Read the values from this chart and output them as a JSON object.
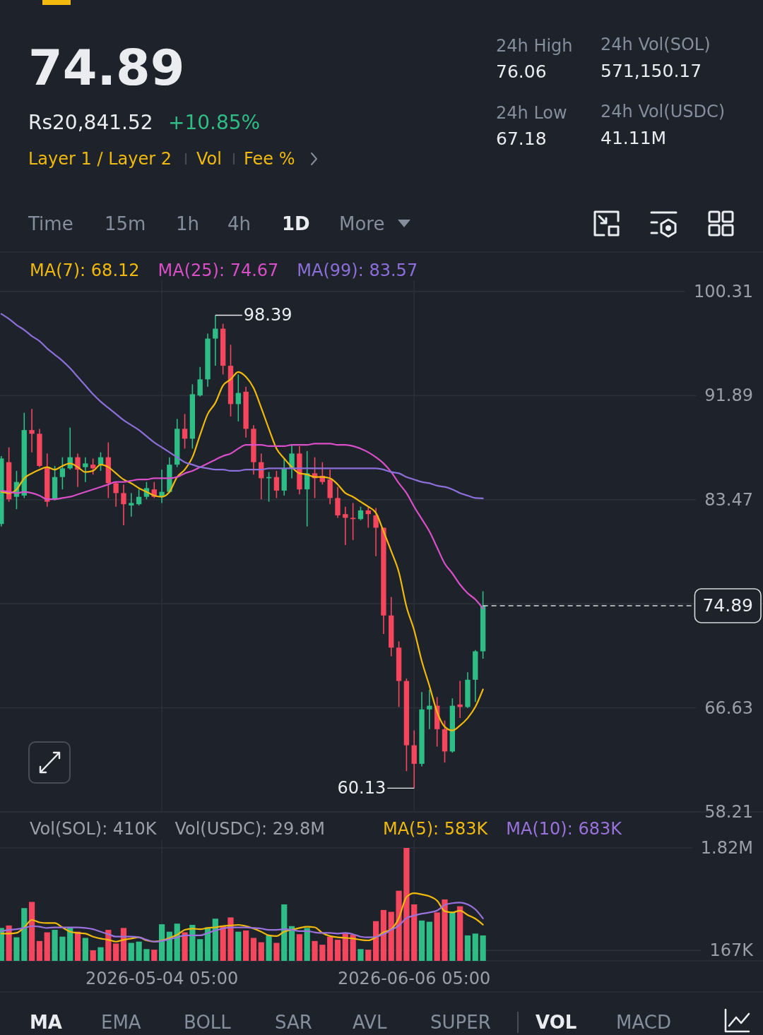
{
  "chart_data": [
    {
      "type": "other",
      "title": "74.89",
      "annotations": [
        "Rs20,841.52",
        "+10.85%",
        "Layer 1 / Layer 2",
        "Vol",
        "Fee %",
        "24h High",
        "76.06",
        "24h Low",
        "67.18",
        "24h Vol(SOL)",
        "571,150.17",
        "24h Vol(USDC)",
        "41.11M",
        "Time",
        "15m",
        "1h",
        "4h",
        "1D",
        "More"
      ]
    },
    {
      "type": "candlestick",
      "x": [
        "2026-04-13T05:00",
        "2026-04-14T05:00",
        "2026-04-15T05:00",
        "2026-04-16T05:00",
        "2026-04-17T05:00",
        "2026-04-18T05:00",
        "2026-04-19T05:00",
        "2026-04-20T05:00",
        "2026-04-21T05:00",
        "2026-04-22T05:00",
        "2026-04-23T05:00",
        "2026-04-24T05:00",
        "2026-04-25T05:00",
        "2026-04-26T05:00",
        "2026-04-27T05:00",
        "2026-04-28T05:00",
        "2026-04-29T05:00",
        "2026-04-30T05:00",
        "2026-05-01T05:00",
        "2026-05-02T05:00",
        "2026-05-03T05:00",
        "2026-05-04T05:00",
        "2026-05-05T05:00",
        "2026-05-06T05:00",
        "2026-05-07T05:00",
        "2026-05-08T05:00",
        "2026-05-09T05:00",
        "2026-05-10T05:00",
        "2026-05-11T05:00",
        "2026-05-12T05:00",
        "2026-05-13T05:00",
        "2026-05-14T05:00",
        "2026-05-15T05:00",
        "2026-05-16T05:00",
        "2026-05-17T05:00",
        "2026-05-18T05:00",
        "2026-05-19T05:00",
        "2026-05-20T05:00",
        "2026-05-21T05:00",
        "2026-05-22T05:00",
        "2026-05-23T05:00",
        "2026-05-24T05:00",
        "2026-05-25T05:00",
        "2026-05-26T05:00",
        "2026-05-27T05:00",
        "2026-05-28T05:00",
        "2026-05-29T05:00",
        "2026-05-30T05:00",
        "2026-05-31T05:00",
        "2026-06-01T05:00",
        "2026-06-02T05:00",
        "2026-06-03T05:00",
        "2026-06-04T05:00",
        "2026-06-05T05:00",
        "2026-06-06T05:00",
        "2026-06-07T05:00",
        "2026-06-08T05:00",
        "2026-06-09T05:00",
        "2026-06-10T05:00",
        "2026-06-11T05:00",
        "2026-06-12T05:00",
        "2026-06-13T05:00",
        "2026-06-14T05:00",
        "2026-06-15T05:00"
      ],
      "ohlc": [
        [
          81.5,
          87.0,
          81.3,
          86.8
        ],
        [
          86.5,
          87.7,
          83.3,
          83.5
        ],
        [
          83.7,
          85.8,
          82.7,
          84.9
        ],
        [
          83.8,
          90.5,
          83.6,
          89.1
        ],
        [
          89.1,
          90.8,
          87.3,
          88.8
        ],
        [
          88.8,
          89.2,
          86.1,
          86.2
        ],
        [
          86.1,
          87.2,
          82.9,
          83.3
        ],
        [
          83.5,
          86.2,
          83.4,
          85.3
        ],
        [
          85.3,
          86.9,
          84.3,
          86.0
        ],
        [
          86.0,
          89.3,
          85.9,
          86.9
        ],
        [
          86.9,
          87.2,
          84.5,
          85.9
        ],
        [
          86.1,
          86.9,
          84.9,
          86.4
        ],
        [
          86.3,
          86.8,
          85.5,
          86.0
        ],
        [
          86.3,
          87.3,
          85.8,
          86.9
        ],
        [
          86.9,
          88.1,
          83.6,
          84.8
        ],
        [
          84.8,
          84.9,
          82.9,
          84.0
        ],
        [
          84.0,
          84.7,
          81.4,
          83.1
        ],
        [
          83.0,
          84.0,
          82.1,
          83.2
        ],
        [
          83.1,
          84.3,
          83.0,
          83.7
        ],
        [
          83.7,
          84.9,
          83.5,
          84.4
        ],
        [
          84.3,
          84.9,
          83.6,
          83.7
        ],
        [
          83.7,
          85.9,
          83.2,
          84.1
        ],
        [
          84.1,
          86.9,
          84.0,
          86.3
        ],
        [
          86.3,
          90.0,
          86.1,
          89.2
        ],
        [
          89.2,
          90.4,
          87.6,
          88.4
        ],
        [
          88.4,
          92.8,
          87.6,
          92.0
        ],
        [
          91.9,
          94.2,
          91.8,
          93.2
        ],
        [
          93.2,
          96.9,
          92.6,
          96.5
        ],
        [
          96.5,
          98.39,
          94.3,
          97.3
        ],
        [
          97.3,
          97.7,
          93.6,
          94.3
        ],
        [
          94.3,
          96.0,
          90.2,
          91.2
        ],
        [
          91.2,
          93.6,
          89.8,
          92.1
        ],
        [
          92.2,
          92.6,
          88.5,
          89.2
        ],
        [
          89.2,
          89.5,
          85.5,
          86.5
        ],
        [
          86.5,
          87.2,
          83.5,
          85.2
        ],
        [
          85.2,
          85.7,
          83.3,
          85.3
        ],
        [
          85.3,
          85.8,
          83.6,
          84.2
        ],
        [
          84.2,
          86.8,
          83.8,
          86.0
        ],
        [
          86.0,
          87.9,
          85.2,
          87.2
        ],
        [
          87.2,
          87.8,
          83.9,
          84.3
        ],
        [
          84.3,
          87.4,
          81.3,
          85.6
        ],
        [
          85.6,
          86.9,
          83.6,
          85.2
        ],
        [
          85.4,
          86.5,
          84.7,
          84.9
        ],
        [
          85.1,
          85.9,
          83.1,
          83.6
        ],
        [
          83.6,
          84.5,
          82.0,
          82.2
        ],
        [
          82.3,
          82.9,
          79.8,
          82.0
        ],
        [
          82.0,
          83.2,
          80.2,
          81.9
        ],
        [
          81.9,
          82.9,
          81.8,
          82.6
        ],
        [
          82.6,
          82.9,
          81.2,
          82.3
        ],
        [
          82.2,
          82.8,
          78.9,
          81.2
        ],
        [
          81.2,
          81.2,
          72.6,
          74.1
        ],
        [
          74.1,
          75.6,
          70.8,
          71.5
        ],
        [
          71.5,
          72.0,
          66.7,
          68.8
        ],
        [
          68.8,
          69.0,
          61.5,
          63.6
        ],
        [
          63.6,
          64.8,
          60.13,
          62.1
        ],
        [
          62.1,
          67.9,
          61.9,
          66.5
        ],
        [
          66.5,
          68.1,
          64.9,
          66.8
        ],
        [
          66.8,
          67.5,
          63.5,
          64.9
        ],
        [
          64.9,
          65.6,
          62.2,
          63.1
        ],
        [
          63.1,
          67.4,
          63.0,
          66.8
        ],
        [
          66.9,
          68.8,
          65.8,
          66.7
        ],
        [
          66.7,
          69.5,
          66.6,
          68.9
        ],
        [
          68.9,
          71.3,
          67.1,
          71.2
        ],
        [
          71.2,
          76.06,
          70.6,
          74.89
        ]
      ],
      "colors": [
        "#2ebd85",
        "#f6465d",
        "#2ebd85",
        "#2ebd85",
        "#f6465d",
        "#f6465d",
        "#f6465d",
        "#2ebd85",
        "#2ebd85",
        "#2ebd85",
        "#f6465d",
        "#2ebd85",
        "#f6465d",
        "#2ebd85",
        "#f6465d",
        "#f6465d",
        "#f6465d",
        "#2ebd85",
        "#2ebd85",
        "#2ebd85",
        "#f6465d",
        "#2ebd85",
        "#2ebd85",
        "#2ebd85",
        "#f6465d",
        "#2ebd85",
        "#2ebd85",
        "#2ebd85",
        "#2ebd85",
        "#f6465d",
        "#f6465d",
        "#2ebd85",
        "#f6465d",
        "#f6465d",
        "#f6465d",
        "#2ebd85",
        "#f6465d",
        "#2ebd85",
        "#2ebd85",
        "#f6465d",
        "#2ebd85",
        "#f6465d",
        "#f6465d",
        "#f6465d",
        "#f6465d",
        "#f6465d",
        "#f6465d",
        "#2ebd85",
        "#f6465d",
        "#f6465d",
        "#f6465d",
        "#f6465d",
        "#f6465d",
        "#f6465d",
        "#f6465d",
        "#2ebd85",
        "#2ebd85",
        "#f6465d",
        "#f6465d",
        "#2ebd85",
        "#f6465d",
        "#2ebd85",
        "#2ebd85",
        "#2ebd85"
      ],
      "series": [
        {
          "name": "MA(7): 68.12",
          "type": "line",
          "color": "#f0b90b",
          "values": [
            84.1,
            84.0,
            84.3,
            85.2,
            85.6,
            85.9,
            86.1,
            85.9,
            86.2,
            86.4,
            86.1,
            85.7,
            85.8,
            86.3,
            86.1,
            85.6,
            85.1,
            84.8,
            84.4,
            84.1,
            83.8,
            83.7,
            84.1,
            85.3,
            85.9,
            86.9,
            88.7,
            90.4,
            91.3,
            92.7,
            93.2,
            93.8,
            93.4,
            92.5,
            90.9,
            89.2,
            87.6,
            86.8,
            86.1,
            85.6,
            85.5,
            85.3,
            85.3,
            85.2,
            84.7,
            84.0,
            83.7,
            83.3,
            82.9,
            82.4,
            80.9,
            79.3,
            77.6,
            74.8,
            72.9,
            70.4,
            68.4,
            66.3,
            65.1,
            64.8,
            65.2,
            65.8,
            66.7,
            68.12
          ]
        },
        {
          "name": "MA(25): 74.67",
          "type": "line",
          "color": "#d94fc8",
          "values": [
            84.2,
            84.1,
            84.0,
            84.1,
            84.0,
            83.8,
            83.5,
            83.5,
            83.6,
            83.7,
            83.9,
            84.1,
            84.3,
            84.5,
            84.7,
            84.9,
            84.9,
            85.0,
            85.1,
            85.1,
            85.2,
            85.2,
            85.2,
            85.3,
            85.6,
            85.8,
            86.1,
            86.4,
            86.7,
            87.0,
            87.2,
            87.6,
            87.9,
            87.9,
            87.9,
            87.8,
            87.8,
            87.8,
            87.9,
            87.9,
            87.9,
            88.0,
            88.0,
            88.0,
            87.9,
            87.9,
            87.8,
            87.6,
            87.3,
            86.9,
            86.4,
            85.7,
            84.8,
            84.0,
            82.9,
            81.9,
            80.9,
            79.6,
            78.3,
            77.5,
            76.6,
            75.9,
            75.4,
            74.67
          ]
        },
        {
          "name": "MA(99): 83.57",
          "type": "line",
          "color": "#8c6fd8",
          "values": [
            98.5,
            98.1,
            97.6,
            97.2,
            96.7,
            96.3,
            95.7,
            95.2,
            94.7,
            94.1,
            93.4,
            92.7,
            92.0,
            91.4,
            90.9,
            90.4,
            89.9,
            89.5,
            89.1,
            88.6,
            88.1,
            87.7,
            87.3,
            86.9,
            86.5,
            86.3,
            86.1,
            86.0,
            85.9,
            85.9,
            85.8,
            85.8,
            85.9,
            85.9,
            85.9,
            86.0,
            86.0,
            86.0,
            86.0,
            86.0,
            86.0,
            86.0,
            86.0,
            86.0,
            86.0,
            86.0,
            86.0,
            86.0,
            86.0,
            86.0,
            85.9,
            85.7,
            85.6,
            85.3,
            85.1,
            84.9,
            84.8,
            84.6,
            84.5,
            84.3,
            84.0,
            83.8,
            83.6,
            83.57
          ]
        }
      ],
      "xlim": [
        "2026-04-13T01:00",
        "2026-07-21T20:00"
      ],
      "xticks": [
        {
          "value": "2026-05-04T05:00",
          "label": null
        },
        {
          "value": "2026-06-06T05:00",
          "label": null
        }
      ],
      "ylim": [
        58.21,
        103.5
      ],
      "yticks": [
        100.31,
        91.89,
        83.47,
        {
          "value": 75.05,
          "label": null
        },
        66.63,
        58.21
      ],
      "tick_labels": "y",
      "grid": true,
      "legend": "top left",
      "annotations": [
        {
          "text": "98.39",
          "x": "2026-05-11T05:00",
          "y": 98.39
        },
        {
          "text": "60.13",
          "x": "2026-06-06T05:00",
          "y": 60.13
        }
      ],
      "ref_lines": [
        {
          "axis": "y",
          "value": 74.89,
          "label": "74.89",
          "line_style": "dashed",
          "color": "#d5d8dd"
        }
      ]
    },
    {
      "type": "bar",
      "x": [
        "2026-04-13T05:00",
        "2026-04-14T05:00",
        "2026-04-15T05:00",
        "2026-04-16T05:00",
        "2026-04-17T05:00",
        "2026-04-18T05:00",
        "2026-04-19T05:00",
        "2026-04-20T05:00",
        "2026-04-21T05:00",
        "2026-04-22T05:00",
        "2026-04-23T05:00",
        "2026-04-24T05:00",
        "2026-04-25T05:00",
        "2026-04-26T05:00",
        "2026-04-27T05:00",
        "2026-04-28T05:00",
        "2026-04-29T05:00",
        "2026-04-30T05:00",
        "2026-05-01T05:00",
        "2026-05-02T05:00",
        "2026-05-03T05:00",
        "2026-05-04T05:00",
        "2026-05-05T05:00",
        "2026-05-06T05:00",
        "2026-05-07T05:00",
        "2026-05-08T05:00",
        "2026-05-09T05:00",
        "2026-05-10T05:00",
        "2026-05-11T05:00",
        "2026-05-12T05:00",
        "2026-05-13T05:00",
        "2026-05-14T05:00",
        "2026-05-15T05:00",
        "2026-05-16T05:00",
        "2026-05-17T05:00",
        "2026-05-18T05:00",
        "2026-05-19T05:00",
        "2026-05-20T05:00",
        "2026-05-21T05:00",
        "2026-05-22T05:00",
        "2026-05-23T05:00",
        "2026-05-24T05:00",
        "2026-05-25T05:00",
        "2026-05-26T05:00",
        "2026-05-27T05:00",
        "2026-05-28T05:00",
        "2026-05-29T05:00",
        "2026-05-30T05:00",
        "2026-05-31T05:00",
        "2026-06-01T05:00",
        "2026-06-02T05:00",
        "2026-06-03T05:00",
        "2026-06-04T05:00",
        "2026-06-05T05:00",
        "2026-06-06T05:00",
        "2026-06-07T05:00",
        "2026-06-08T05:00",
        "2026-06-09T05:00",
        "2026-06-10T05:00",
        "2026-06-11T05:00",
        "2026-06-12T05:00",
        "2026-06-13T05:00",
        "2026-06-14T05:00",
        "2026-06-15T05:00"
      ],
      "series": [
        {
          "values": [
            530000,
            570000,
            380000,
            850000,
            950000,
            320000,
            460000,
            500000,
            390000,
            540000,
            470000,
            370000,
            170000,
            220000,
            500000,
            280000,
            530000,
            290000,
            310000,
            190000,
            180000,
            590000,
            470000,
            600000,
            460000,
            580000,
            350000,
            540000,
            680000,
            570000,
            700000,
            470000,
            490000,
            370000,
            300000,
            410000,
            290000,
            910000,
            560000,
            430000,
            530000,
            320000,
            260000,
            390000,
            340000,
            440000,
            420000,
            190000,
            180000,
            640000,
            820000,
            790000,
            1130000,
            1820000,
            910000,
            650000,
            630000,
            780000,
            990000,
            790000,
            880000,
            410000,
            440000,
            410000
          ],
          "colors": [
            "#2ebd85",
            "#f6465d",
            "#2ebd85",
            "#2ebd85",
            "#f6465d",
            "#f6465d",
            "#f6465d",
            "#2ebd85",
            "#2ebd85",
            "#2ebd85",
            "#f6465d",
            "#2ebd85",
            "#f6465d",
            "#2ebd85",
            "#f6465d",
            "#f6465d",
            "#f6465d",
            "#2ebd85",
            "#2ebd85",
            "#2ebd85",
            "#f6465d",
            "#2ebd85",
            "#2ebd85",
            "#2ebd85",
            "#f6465d",
            "#2ebd85",
            "#2ebd85",
            "#2ebd85",
            "#2ebd85",
            "#f6465d",
            "#f6465d",
            "#2ebd85",
            "#f6465d",
            "#f6465d",
            "#f6465d",
            "#2ebd85",
            "#f6465d",
            "#2ebd85",
            "#2ebd85",
            "#f6465d",
            "#2ebd85",
            "#f6465d",
            "#f6465d",
            "#f6465d",
            "#f6465d",
            "#f6465d",
            "#f6465d",
            "#2ebd85",
            "#f6465d",
            "#f6465d",
            "#f6465d",
            "#f6465d",
            "#f6465d",
            "#f6465d",
            "#f6465d",
            "#2ebd85",
            "#2ebd85",
            "#f6465d",
            "#f6465d",
            "#2ebd85",
            "#f6465d",
            "#2ebd85",
            "#2ebd85",
            "#2ebd85"
          ]
        },
        {
          "name": "MA(5): 583K",
          "type": "line",
          "color": "#f0b90b",
          "values": [
            440000,
            440000,
            450000,
            540000,
            660000,
            620000,
            610000,
            610000,
            540000,
            470000,
            450000,
            440000,
            390000,
            360000,
            340000,
            310000,
            340000,
            360000,
            380000,
            330000,
            310000,
            330000,
            370000,
            420000,
            500000,
            520000,
            510000,
            530000,
            540000,
            560000,
            570000,
            580000,
            560000,
            520000,
            470000,
            410000,
            400000,
            470000,
            500000,
            530000,
            550000,
            540000,
            450000,
            400000,
            380000,
            370000,
            360000,
            340000,
            330000,
            380000,
            460000,
            510000,
            690000,
            1030000,
            1090000,
            1070000,
            1040000,
            970000,
            800000,
            780000,
            810000,
            740000,
            680000,
            583000
          ]
        },
        {
          "name": "MA(10): 683K",
          "type": "line",
          "color": "#9a72dc",
          "values": [
            480000,
            500000,
            510000,
            530000,
            560000,
            550000,
            530000,
            540000,
            540000,
            540000,
            540000,
            530000,
            510000,
            470000,
            430000,
            390000,
            390000,
            390000,
            380000,
            340000,
            310000,
            320000,
            350000,
            380000,
            410000,
            410000,
            410000,
            450000,
            490000,
            520000,
            540000,
            540000,
            540000,
            530000,
            520000,
            500000,
            500000,
            510000,
            500000,
            480000,
            480000,
            460000,
            450000,
            450000,
            440000,
            450000,
            430000,
            390000,
            380000,
            390000,
            430000,
            500000,
            570000,
            690000,
            730000,
            760000,
            780000,
            810000,
            900000,
            930000,
            940000,
            910000,
            830000,
            683000
          ]
        }
      ],
      "xlim": [
        "2026-04-13T01:00",
        "2026-07-21T20:00"
      ],
      "xticks": [
        {
          "value": "2026-05-04T05:00",
          "label": "2026-05-04 05:00"
        },
        {
          "value": "2026-06-06T05:00",
          "label": "2026-06-06 05:00"
        }
      ],
      "ylim": [
        0,
        2400000
      ],
      "yticks": [
        {
          "value": 1820000,
          "label": "1.82M"
        },
        {
          "value": 167000,
          "label": "167K"
        }
      ],
      "grid": true,
      "legend": "top right",
      "annotations": [
        "Vol(SOL): 410K",
        "Vol(USDC): 29.8M"
      ]
    },
    {
      "type": "other",
      "annotations": [
        "MA",
        "EMA",
        "BOLL",
        "SAR",
        "AVL",
        "SUPER",
        "VOL",
        "MACD"
      ]
    }
  ]
}
